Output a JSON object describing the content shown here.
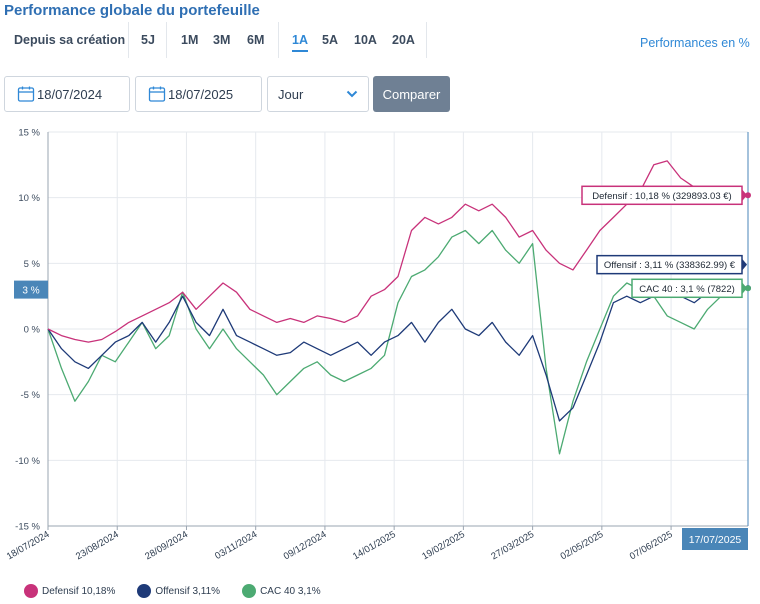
{
  "header": {
    "title": "Performance globale du portefeuille"
  },
  "periods": [
    {
      "label": "Depuis sa création",
      "active": false
    },
    {
      "label": "5J",
      "active": false
    },
    {
      "label": "1M",
      "active": false
    },
    {
      "label": "3M",
      "active": false
    },
    {
      "label": "6M",
      "active": false
    },
    {
      "label": "1A",
      "active": true
    },
    {
      "label": "5A",
      "active": false
    },
    {
      "label": "10A",
      "active": false
    },
    {
      "label": "20A",
      "active": false
    }
  ],
  "mode_label": "Performances en %",
  "filters": {
    "start_date": "18/07/2024",
    "end_date": "18/07/2025",
    "granularity": "Jour",
    "compare_label": "Comparer"
  },
  "colors": {
    "defensif": "#c8327a",
    "offensif": "#1e3a78",
    "cac40": "#4caa72",
    "accent": "#2f88d6"
  },
  "chart_data": {
    "type": "line",
    "title": "",
    "xlabel": "",
    "ylabel": "",
    "ylim": [
      -15,
      15
    ],
    "y_ticks": [
      "15 %",
      "10 %",
      "5 %",
      "0 %",
      "-5 %",
      "-10 %",
      "-15 %"
    ],
    "x_ticks": [
      "18/07/2024",
      "23/08/2024",
      "28/09/2024",
      "03/11/2024",
      "09/12/2024",
      "14/01/2025",
      "19/02/2025",
      "27/03/2025",
      "02/05/2025",
      "07/06/2025"
    ],
    "x_range": [
      "18/07/2024",
      "17/07/2025"
    ],
    "grid": true,
    "crosshair": {
      "date": "17/07/2025",
      "value_label": "3 %"
    },
    "tooltips": [
      {
        "series": "Defensif",
        "text": "Defensif : 10,18 % (329893.03 €)"
      },
      {
        "series": "Offensif",
        "text": "Offensif : 3,11 % (338362.99) €"
      },
      {
        "series": "CAC 40",
        "text": "CAC 40 : 3,1 % (7822)"
      }
    ],
    "series": [
      {
        "name": "Defensif",
        "legend_value": "10,18%",
        "x": [
          "18/07/2024",
          "25/07/2024",
          "01/08/2024",
          "08/08/2024",
          "15/08/2024",
          "22/08/2024",
          "29/08/2024",
          "05/09/2024",
          "12/09/2024",
          "19/09/2024",
          "26/09/2024",
          "03/10/2024",
          "10/10/2024",
          "17/10/2024",
          "24/10/2024",
          "31/10/2024",
          "07/11/2024",
          "14/11/2024",
          "21/11/2024",
          "28/11/2024",
          "05/12/2024",
          "12/12/2024",
          "19/12/2024",
          "26/12/2024",
          "02/01/2025",
          "09/01/2025",
          "16/01/2025",
          "23/01/2025",
          "30/01/2025",
          "06/02/2025",
          "13/02/2025",
          "20/02/2025",
          "27/02/2025",
          "06/03/2025",
          "13/03/2025",
          "20/03/2025",
          "27/03/2025",
          "03/04/2025",
          "10/04/2025",
          "17/04/2025",
          "24/04/2025",
          "01/05/2025",
          "08/05/2025",
          "15/05/2025",
          "22/05/2025",
          "29/05/2025",
          "05/06/2025",
          "12/06/2025",
          "19/06/2025",
          "26/06/2025",
          "03/07/2025",
          "10/07/2025",
          "17/07/2025"
        ],
        "values": [
          0,
          -0.5,
          -0.8,
          -1.0,
          -0.8,
          -0.2,
          0.5,
          1.0,
          1.5,
          2.0,
          2.8,
          1.5,
          2.5,
          3.5,
          2.8,
          1.5,
          1.0,
          0.5,
          0.8,
          0.5,
          1.0,
          0.8,
          0.5,
          1.0,
          2.5,
          3.0,
          4.0,
          7.5,
          8.5,
          8.0,
          8.5,
          9.5,
          9.0,
          9.5,
          8.5,
          7.0,
          7.5,
          6.0,
          5.0,
          4.5,
          6.0,
          7.5,
          8.5,
          9.5,
          10.5,
          12.5,
          12.8,
          11.5,
          10.8,
          10.5,
          10.0,
          10.3,
          10.18
        ]
      },
      {
        "name": "Offensif",
        "legend_value": "3,11%",
        "x": [
          "18/07/2024",
          "25/07/2024",
          "01/08/2024",
          "08/08/2024",
          "15/08/2024",
          "22/08/2024",
          "29/08/2024",
          "05/09/2024",
          "12/09/2024",
          "19/09/2024",
          "26/09/2024",
          "03/10/2024",
          "10/10/2024",
          "17/10/2024",
          "24/10/2024",
          "31/10/2024",
          "07/11/2024",
          "14/11/2024",
          "21/11/2024",
          "28/11/2024",
          "05/12/2024",
          "12/12/2024",
          "19/12/2024",
          "26/12/2024",
          "02/01/2025",
          "09/01/2025",
          "16/01/2025",
          "23/01/2025",
          "30/01/2025",
          "06/02/2025",
          "13/02/2025",
          "20/02/2025",
          "27/02/2025",
          "06/03/2025",
          "13/03/2025",
          "20/03/2025",
          "27/03/2025",
          "03/04/2025",
          "10/04/2025",
          "17/04/2025",
          "24/04/2025",
          "01/05/2025",
          "08/05/2025",
          "15/05/2025",
          "22/05/2025",
          "29/05/2025",
          "05/06/2025",
          "12/06/2025",
          "19/06/2025",
          "26/06/2025",
          "03/07/2025",
          "10/07/2025",
          "17/07/2025"
        ],
        "values": [
          0,
          -1.5,
          -2.5,
          -3.0,
          -2.0,
          -1.0,
          -0.5,
          0.5,
          -1.0,
          0.5,
          2.5,
          0.5,
          -0.5,
          1.5,
          -0.5,
          -1.0,
          -1.5,
          -2.0,
          -1.8,
          -1.0,
          -1.5,
          -2.0,
          -1.5,
          -1.0,
          -2.0,
          -1.0,
          -0.5,
          0.5,
          -1.0,
          0.5,
          1.5,
          0.0,
          -0.5,
          0.5,
          -1.0,
          -2.0,
          -0.5,
          -3.5,
          -7.0,
          -6.0,
          -3.5,
          -1.0,
          2.0,
          2.5,
          2.0,
          2.5,
          3.0,
          2.5,
          2.0,
          2.8,
          3.0,
          3.2,
          3.11
        ]
      },
      {
        "name": "CAC 40",
        "legend_value": "3,1%",
        "x": [
          "18/07/2024",
          "25/07/2024",
          "01/08/2024",
          "08/08/2024",
          "15/08/2024",
          "22/08/2024",
          "29/08/2024",
          "05/09/2024",
          "12/09/2024",
          "19/09/2024",
          "26/09/2024",
          "03/10/2024",
          "10/10/2024",
          "17/10/2024",
          "24/10/2024",
          "31/10/2024",
          "07/11/2024",
          "14/11/2024",
          "21/11/2024",
          "28/11/2024",
          "05/12/2024",
          "12/12/2024",
          "19/12/2024",
          "26/12/2024",
          "02/01/2025",
          "09/01/2025",
          "16/01/2025",
          "23/01/2025",
          "30/01/2025",
          "06/02/2025",
          "13/02/2025",
          "20/02/2025",
          "27/02/2025",
          "06/03/2025",
          "13/03/2025",
          "20/03/2025",
          "27/03/2025",
          "03/04/2025",
          "10/04/2025",
          "17/04/2025",
          "24/04/2025",
          "01/05/2025",
          "08/05/2025",
          "15/05/2025",
          "22/05/2025",
          "29/05/2025",
          "05/06/2025",
          "12/06/2025",
          "19/06/2025",
          "26/06/2025",
          "03/07/2025",
          "10/07/2025",
          "17/07/2025"
        ],
        "values": [
          0,
          -3.0,
          -5.5,
          -4.0,
          -2.0,
          -2.5,
          -1.0,
          0.5,
          -1.5,
          -0.5,
          2.8,
          0.0,
          -1.5,
          0.0,
          -1.5,
          -2.5,
          -3.5,
          -5.0,
          -4.0,
          -3.0,
          -2.5,
          -3.5,
          -4.0,
          -3.5,
          -3.0,
          -2.0,
          2.0,
          4.0,
          4.5,
          5.5,
          7.0,
          7.5,
          6.5,
          7.5,
          6.0,
          5.0,
          6.5,
          -3.0,
          -9.5,
          -5.5,
          -2.5,
          0.0,
          2.5,
          3.5,
          3.0,
          2.5,
          1.0,
          0.5,
          0.0,
          1.5,
          2.5,
          2.8,
          3.1
        ]
      }
    ]
  }
}
